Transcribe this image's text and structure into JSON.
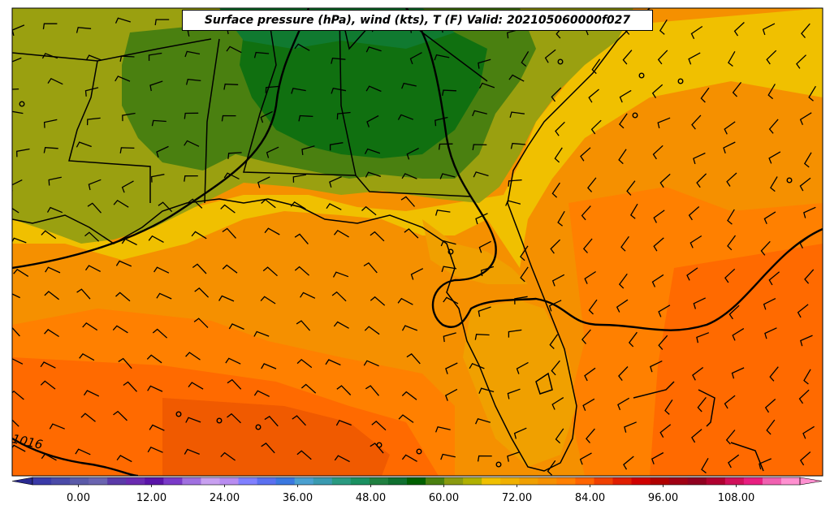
{
  "title": "Surface pressure (hPa), wind (kts), T (F) Valid: 202105060000f027",
  "contour_label": "1016",
  "colorbar": {
    "tick_labels": [
      "0.00",
      "12.00",
      "24.00",
      "36.00",
      "48.00",
      "60.00",
      "72.00",
      "84.00",
      "96.00",
      "108.00"
    ],
    "min": -6,
    "max": 120,
    "step": 3,
    "extend": "both",
    "colors": [
      "#3a3aa8",
      "#4a4aa8",
      "#5a5aa8",
      "#6a64b0",
      "#5a3aa8",
      "#6a2ab0",
      "#5a14a8",
      "#7a3ac8",
      "#a070e0",
      "#c8a0f0",
      "#b88cf0",
      "#8080ff",
      "#5a70f0",
      "#3a78e0",
      "#4aa0d0",
      "#3a9ab0",
      "#2a9a80",
      "#1a9060",
      "#208040",
      "#107030",
      "#006000",
      "#4a8010",
      "#8a9a10",
      "#b0b000",
      "#f0c000",
      "#f0b000",
      "#f0a000",
      "#f59000",
      "#ff8000",
      "#ff6400",
      "#f04000",
      "#e01e00",
      "#d00000",
      "#b00000",
      "#a00014",
      "#900020",
      "#b00030",
      "#d0105a",
      "#e81e80",
      "#f060b0",
      "#ff90d0"
    ],
    "over_color": "#ff90d0",
    "under_color": "#2a2a90"
  }
}
